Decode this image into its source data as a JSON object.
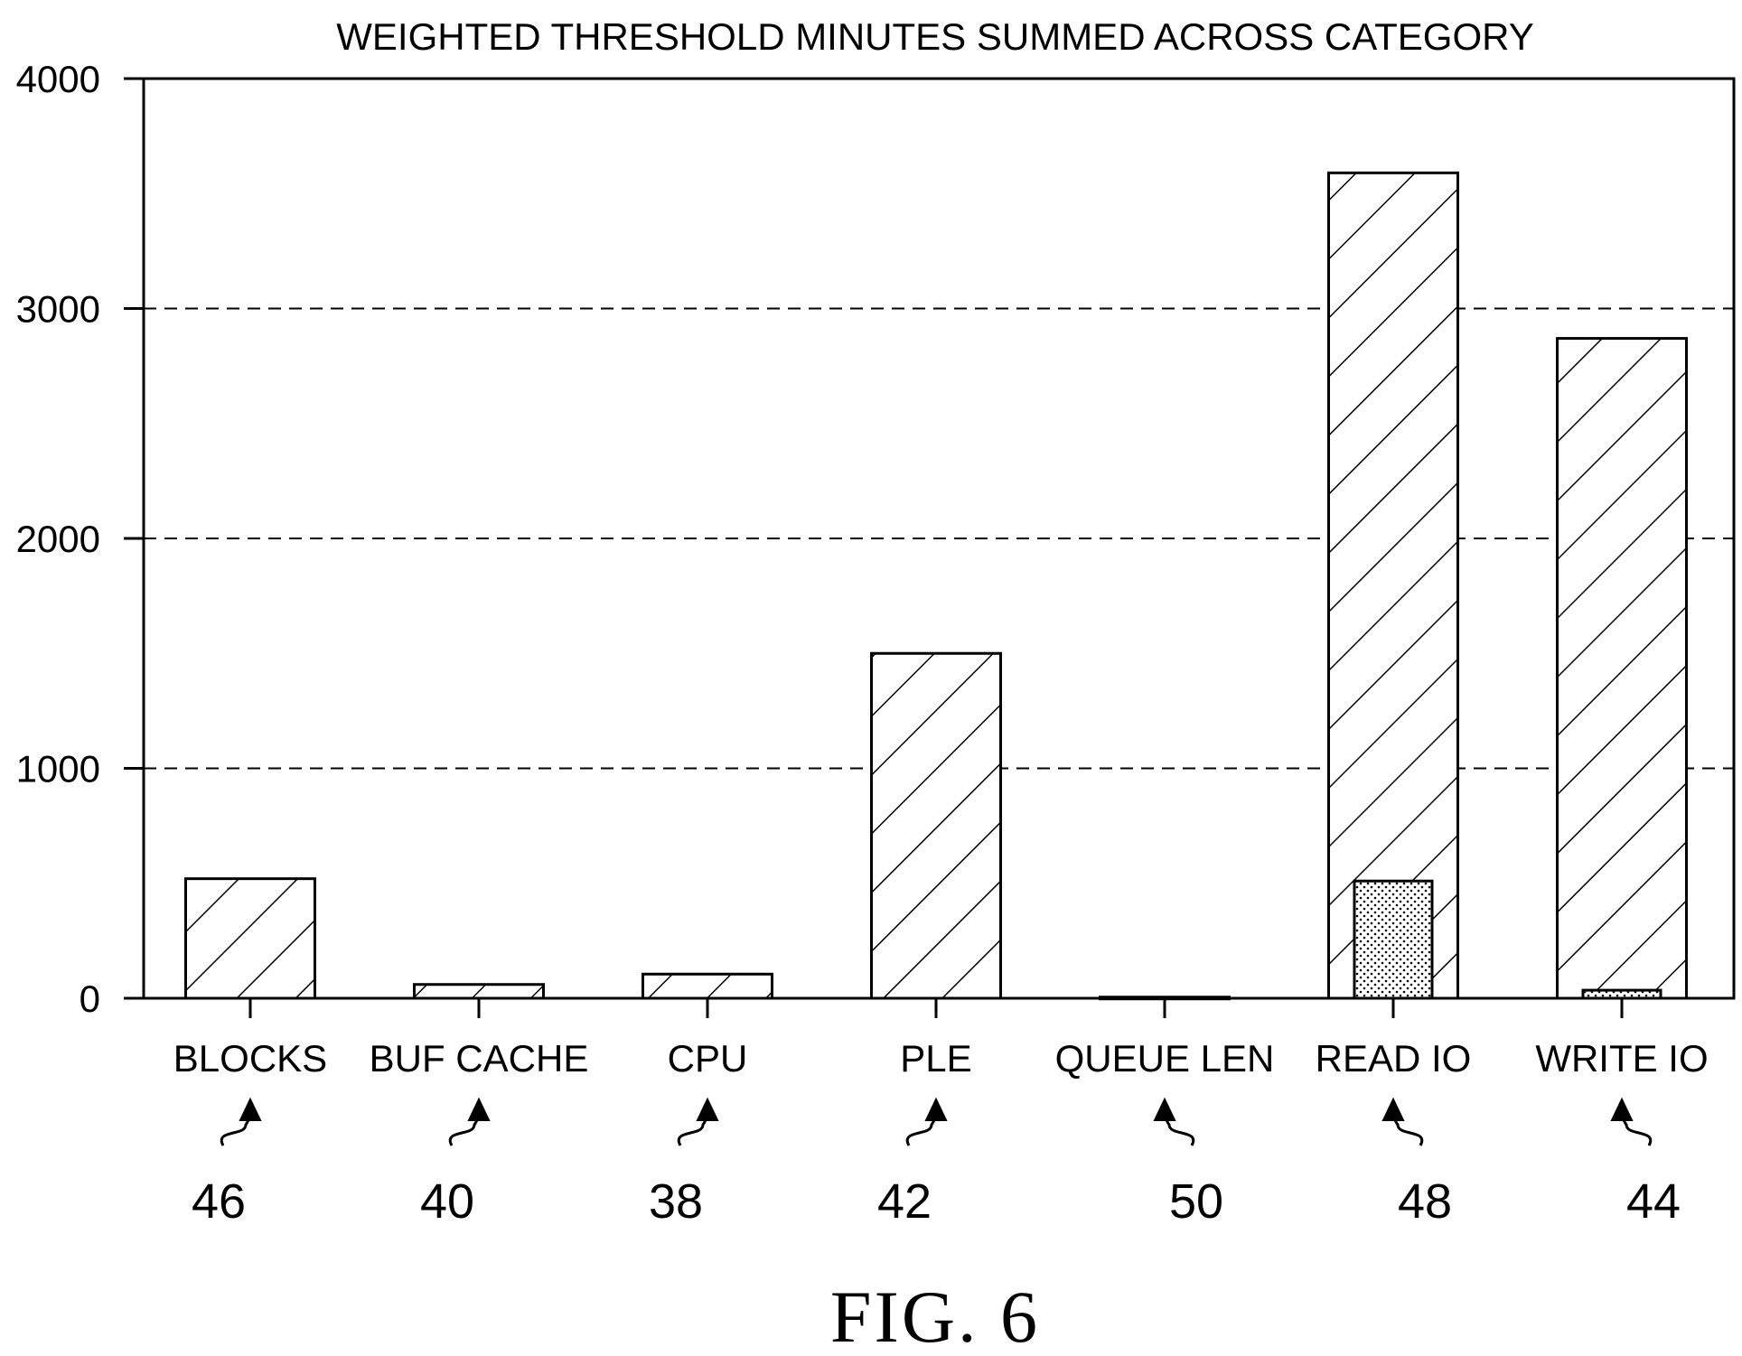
{
  "chart_data": {
    "type": "bar",
    "title": "WEIGHTED THRESHOLD MINUTES SUMMED ACROSS CATEGORY",
    "xlabel": "",
    "ylabel": "",
    "ylim": [
      0,
      4000
    ],
    "yticks": [
      "0",
      "1000",
      "2000",
      "3000",
      "4000"
    ],
    "grid": "horizontal dashed at 1000, 2000, 3000",
    "categories": [
      "BLOCKS",
      "BUF CACHE",
      "CPU",
      "PLE",
      "QUEUE LEN",
      "READ IO",
      "WRITE IO"
    ],
    "reference_numerals": [
      "46",
      "40",
      "38",
      "42",
      "50",
      "48",
      "44"
    ],
    "series": [
      {
        "pattern": "diagonal-hatch",
        "values": [
          520,
          60,
          105,
          1500,
          5,
          3590,
          2870
        ]
      },
      {
        "pattern": "dotted",
        "values": [
          0,
          0,
          0,
          0,
          0,
          510,
          35
        ]
      }
    ],
    "figure_label": "FIG. 6"
  }
}
